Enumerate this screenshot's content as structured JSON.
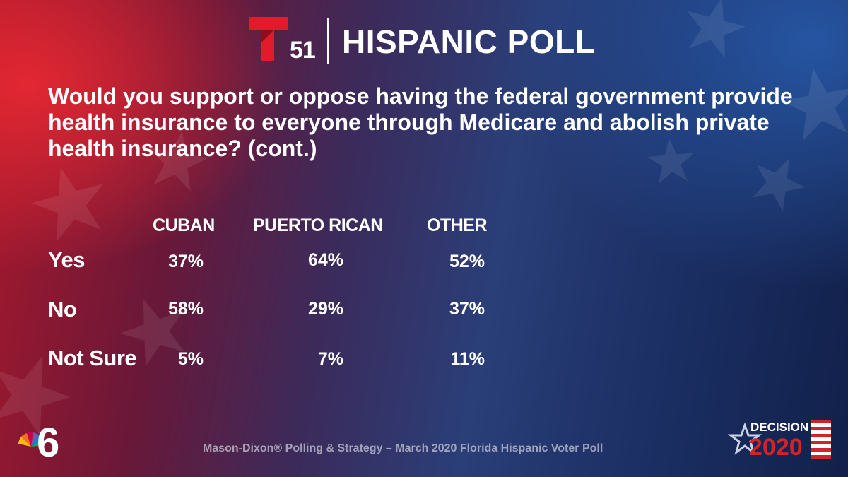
{
  "header": {
    "station_number": "51",
    "title": "HISPANIC POLL"
  },
  "question": "Would you support or oppose having the federal government provide health insurance to everyone through Medicare and abolish private health insurance? (cont.)",
  "table": {
    "columns": [
      "CUBAN",
      "PUERTO RICAN",
      "OTHER"
    ],
    "rows": [
      {
        "label": "Yes",
        "values": [
          "37%",
          "64%",
          "52%"
        ]
      },
      {
        "label": "No",
        "values": [
          "58%",
          "29%",
          "37%"
        ]
      },
      {
        "label": "Not Sure",
        "values": [
          "5%",
          "7%",
          "11%"
        ]
      }
    ]
  },
  "source": "Mason-Dixon® Polling & Strategy – March 2020 Florida Hispanic Voter Poll",
  "footer_badge": {
    "decision_label": "DECISION",
    "year": "2020"
  },
  "colors": {
    "telemundo_red": "#e21b2c",
    "left_glow": "#e62832",
    "right_glow": "#285aaa"
  },
  "icons": [
    "telemundo-t-logo",
    "nbc-peacock-6-logo",
    "decision-2020-star-flag"
  ]
}
